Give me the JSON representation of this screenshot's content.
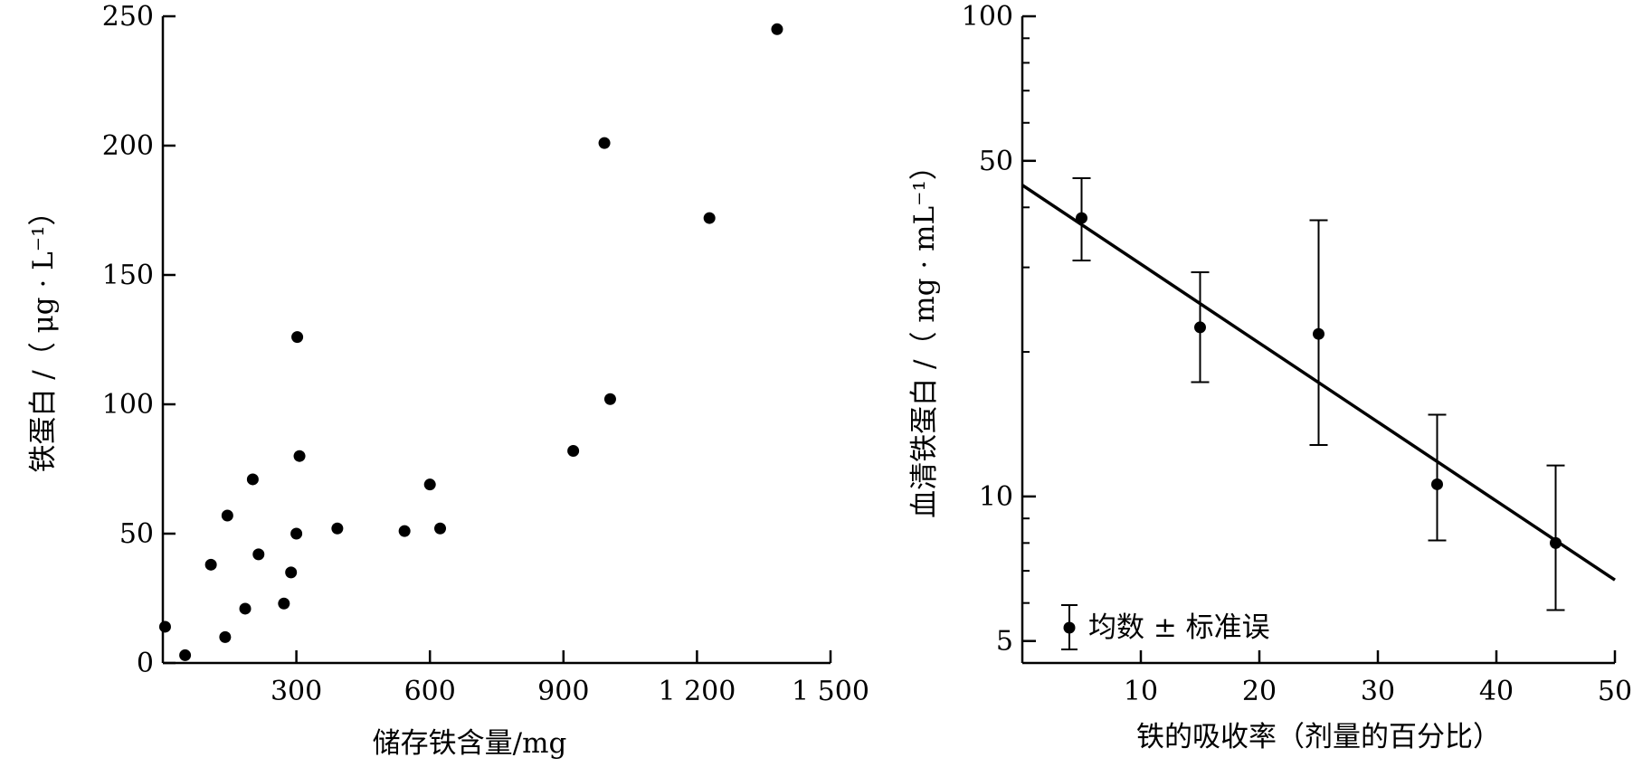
{
  "chart_data": [
    {
      "type": "scatter",
      "xlabel": "储存铁含量/mg",
      "ylabel": "铁蛋白 /（ μg · L⁻¹）",
      "xlim": [
        0,
        1500
      ],
      "ylim": [
        0,
        250
      ],
      "xticks": [
        300,
        600,
        900,
        1200,
        1500
      ],
      "xtick_labels": [
        "300",
        "600",
        "900",
        "1 200",
        "1 500"
      ],
      "yticks": [
        0,
        50,
        100,
        150,
        200,
        250
      ],
      "ytick_labels": [
        "0",
        "50",
        "100",
        "150",
        "200",
        "250"
      ],
      "grid": false,
      "points": [
        {
          "x": 5,
          "y": 14
        },
        {
          "x": 50,
          "y": 3
        },
        {
          "x": 108,
          "y": 38
        },
        {
          "x": 140,
          "y": 10
        },
        {
          "x": 145,
          "y": 57
        },
        {
          "x": 185,
          "y": 21
        },
        {
          "x": 202,
          "y": 71
        },
        {
          "x": 215,
          "y": 42
        },
        {
          "x": 272,
          "y": 23
        },
        {
          "x": 288,
          "y": 35
        },
        {
          "x": 300,
          "y": 50
        },
        {
          "x": 302,
          "y": 126
        },
        {
          "x": 307,
          "y": 80
        },
        {
          "x": 392,
          "y": 52
        },
        {
          "x": 543,
          "y": 51
        },
        {
          "x": 600,
          "y": 69
        },
        {
          "x": 623,
          "y": 52
        },
        {
          "x": 922,
          "y": 82
        },
        {
          "x": 992,
          "y": 201
        },
        {
          "x": 1005,
          "y": 102
        },
        {
          "x": 1228,
          "y": 172
        },
        {
          "x": 1380,
          "y": 245
        }
      ]
    },
    {
      "type": "scatter",
      "xlabel": "铁的吸收率（剂量的百分比）",
      "ylabel": "血清铁蛋白 /（ mg · mL⁻¹）",
      "xlim": [
        0,
        50
      ],
      "ylim": [
        4.5,
        100
      ],
      "log_y": true,
      "xticks": [
        10,
        20,
        30,
        40,
        50
      ],
      "xtick_labels": [
        "10",
        "20",
        "30",
        "40",
        "50"
      ],
      "yticks": [
        5,
        10,
        50,
        100
      ],
      "ytick_labels": [
        "5",
        "10",
        "50",
        "100"
      ],
      "grid": false,
      "legend": {
        "label": "均数 ± 标准误",
        "position": "bottom-left"
      },
      "points": [
        {
          "x": 5,
          "y": 38,
          "y_low": 31,
          "y_high": 46
        },
        {
          "x": 15,
          "y": 22.5,
          "y_low": 17.3,
          "y_high": 29.3
        },
        {
          "x": 25,
          "y": 21.8,
          "y_low": 12.8,
          "y_high": 37.6
        },
        {
          "x": 35,
          "y": 10.6,
          "y_low": 8.1,
          "y_high": 14.8
        },
        {
          "x": 45,
          "y": 8.0,
          "y_low": 5.8,
          "y_high": 11.6
        }
      ],
      "fit_line": {
        "x": [
          0,
          50
        ],
        "y": [
          44.5,
          6.7
        ]
      }
    }
  ]
}
